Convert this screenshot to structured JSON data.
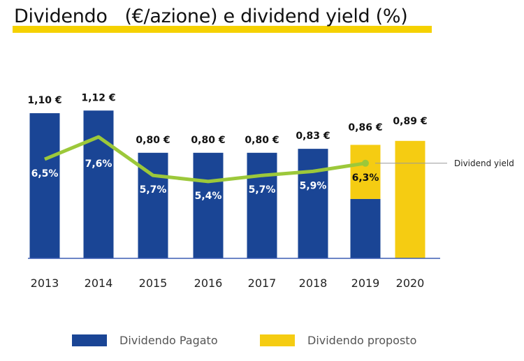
{
  "chart_data": {
    "type": "bar",
    "title": "Dividendo   (€/azione) e dividend yield (%)",
    "categories": [
      "2013",
      "2014",
      "2015",
      "2016",
      "2017",
      "2018",
      "2019",
      "2020"
    ],
    "series": [
      {
        "name": "Dividendo Pagato",
        "color": "#1a4595",
        "values": [
          1.1,
          1.12,
          0.8,
          0.8,
          0.8,
          0.83,
          0.45,
          0
        ]
      },
      {
        "name": "Dividendo proposto",
        "color": "#f5cc12",
        "values": [
          0,
          0,
          0,
          0,
          0,
          0,
          0.41,
          0.89
        ]
      }
    ],
    "total_labels": [
      "1,10 €",
      "1,12 €",
      "0,80 €",
      "0,80 €",
      "0,80 €",
      "0,83 €",
      "0,86 €",
      "0,89 €"
    ],
    "line": {
      "name": "Dividend yield",
      "color": "#9cc83a",
      "values": [
        6.5,
        7.6,
        5.7,
        5.4,
        5.7,
        5.9,
        6.3,
        null
      ],
      "labels": [
        "6,5%",
        "7,6%",
        "5,7%",
        "5,4%",
        "5,7%",
        "5,9%",
        "6,3%",
        ""
      ]
    },
    "legend": [
      "Dividendo Pagato",
      "Dividendo proposto"
    ],
    "legend_placement": "bottom",
    "grid": false
  }
}
